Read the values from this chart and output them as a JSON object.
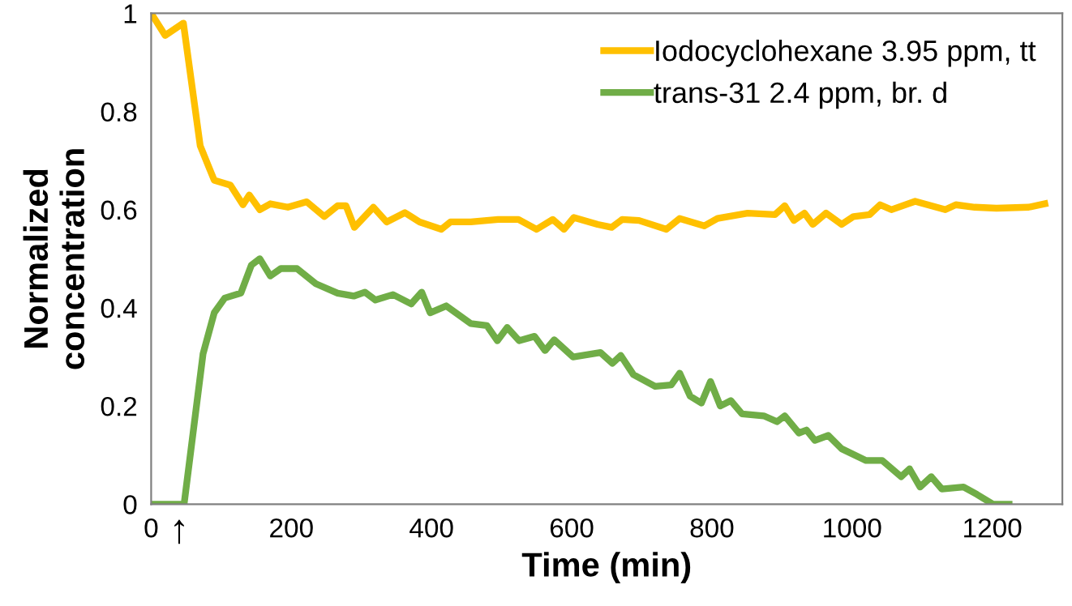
{
  "chart_data": {
    "type": "line",
    "xlabel": "Time (min)",
    "ylabel": "Normalized\nconcentration",
    "xlim": [
      0,
      1300
    ],
    "xticks": [
      0,
      200,
      400,
      600,
      800,
      1000,
      1200
    ],
    "ylim": [
      0,
      1
    ],
    "yticks": [
      0,
      {
        "value": 0.2,
        "label": "0.2"
      },
      {
        "value": 0.4,
        "label": "0.4"
      },
      {
        "value": 0.6,
        "label": "0.6"
      },
      {
        "value": 0.8,
        "label": "0.8"
      },
      1
    ],
    "grid": false,
    "legend": "top right",
    "marker": "none",
    "line_style": "solid",
    "annotations": [
      {
        "text": "↑",
        "x": 40,
        "y": 0
      }
    ],
    "series": [
      {
        "name": "Iodocyclohexane 3.95 ppm, tt",
        "color": "#ffc000",
        "x": [
          0,
          20,
          46,
          70,
          90,
          113,
          131,
          140,
          155,
          170,
          195,
          222,
          247,
          266,
          278,
          290,
          317,
          336,
          362,
          383,
          414,
          427,
          456,
          495,
          524,
          550,
          573,
          589,
          603,
          637,
          657,
          672,
          696,
          735,
          754,
          789,
          808,
          851,
          890,
          904,
          917,
          932,
          944,
          963,
          985,
          1002,
          1025,
          1040,
          1056,
          1090,
          1133,
          1148,
          1175,
          1206,
          1252,
          1275
        ],
        "values": [
          1.0,
          0.955,
          0.98,
          0.73,
          0.66,
          0.65,
          0.61,
          0.63,
          0.6,
          0.612,
          0.605,
          0.616,
          0.586,
          0.608,
          0.608,
          0.564,
          0.605,
          0.575,
          0.594,
          0.575,
          0.56,
          0.575,
          0.575,
          0.58,
          0.58,
          0.56,
          0.58,
          0.56,
          0.584,
          0.57,
          0.564,
          0.58,
          0.578,
          0.56,
          0.582,
          0.567,
          0.582,
          0.593,
          0.59,
          0.608,
          0.578,
          0.593,
          0.57,
          0.593,
          0.57,
          0.586,
          0.59,
          0.61,
          0.6,
          0.617,
          0.6,
          0.61,
          0.605,
          0.603,
          0.605,
          0.612
        ]
      },
      {
        "name": "trans-31 2.4 ppm, br. d",
        "color": "#70ad47",
        "x": [
          0,
          20,
          47,
          74,
          90,
          105,
          128,
          143,
          155,
          170,
          185,
          208,
          235,
          266,
          289,
          305,
          320,
          345,
          371,
          386,
          398,
          421,
          456,
          479,
          494,
          508,
          525,
          547,
          562,
          575,
          602,
          641,
          658,
          670,
          688,
          719,
          742,
          754,
          769,
          785,
          798,
          812,
          827,
          843,
          874,
          893,
          904,
          924,
          935,
          947,
          966,
          985,
          1020,
          1043,
          1070,
          1082,
          1097,
          1113,
          1128,
          1159,
          1178,
          1201,
          1224
        ],
        "values": [
          0,
          0,
          0,
          0.306,
          0.39,
          0.42,
          0.43,
          0.487,
          0.5,
          0.465,
          0.48,
          0.48,
          0.449,
          0.43,
          0.424,
          0.432,
          0.416,
          0.427,
          0.408,
          0.432,
          0.39,
          0.404,
          0.368,
          0.364,
          0.333,
          0.36,
          0.333,
          0.342,
          0.313,
          0.335,
          0.3,
          0.309,
          0.287,
          0.303,
          0.264,
          0.24,
          0.243,
          0.267,
          0.22,
          0.206,
          0.25,
          0.2,
          0.211,
          0.184,
          0.18,
          0.168,
          0.18,
          0.145,
          0.151,
          0.13,
          0.14,
          0.113,
          0.089,
          0.089,
          0.056,
          0.072,
          0.035,
          0.056,
          0.031,
          0.035,
          0.02,
          0,
          0
        ]
      }
    ]
  }
}
